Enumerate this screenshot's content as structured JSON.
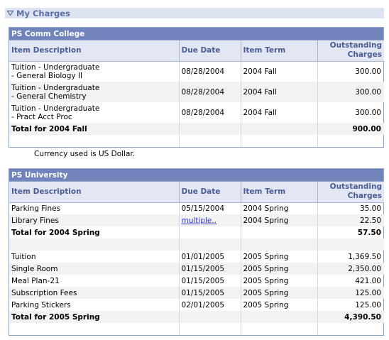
{
  "section": {
    "title": "My Charges"
  },
  "groups": [
    {
      "title": "PS Comm College",
      "headers": {
        "desc": "Item Description",
        "due": "Due Date",
        "term": "Item Term",
        "amount_line1": "Outstanding",
        "amount_line2": "Charges"
      },
      "rows": [
        {
          "desc1": "Tuition - Undergraduate",
          "desc2": "-  General Biology II",
          "due": "08/28/2004",
          "term": "2004 Fall",
          "amount": "300.00"
        },
        {
          "desc1": "Tuition - Undergraduate",
          "desc2": "-  General Chemistry",
          "due": "08/28/2004",
          "term": "2004 Fall",
          "amount": "300.00"
        },
        {
          "desc1": "Tuition - Undergraduate",
          "desc2": "-  Pract Acct Proc",
          "due": "08/28/2004",
          "term": "2004 Fall",
          "amount": "300.00"
        }
      ],
      "total": {
        "label": "Total for 2004 Fall",
        "amount": "900.00"
      }
    },
    {
      "title": "PS University",
      "headers": {
        "desc": "Item Description",
        "due": "Due Date",
        "term": "Item Term",
        "amount_line1": "Outstanding",
        "amount_line2": "Charges"
      },
      "block1": [
        {
          "desc": "Parking Fines",
          "due": "05/15/2004",
          "term": "2004 Spring",
          "amount": "35.00"
        },
        {
          "desc": "Library Fines",
          "due": "multiple..",
          "term": "2004 Spring",
          "amount": "22.50"
        }
      ],
      "total1": {
        "label": "Total for 2004 Spring",
        "amount": "57.50"
      },
      "block2": [
        {
          "desc": "Tuition",
          "due": "01/01/2005",
          "term": "2005 Spring",
          "amount": "1,369.50"
        },
        {
          "desc": "Single Room",
          "due": "01/15/2005",
          "term": "2005 Spring",
          "amount": "2,350.00"
        },
        {
          "desc": "Meal Plan-21",
          "due": "01/15/2005",
          "term": "2005 Spring",
          "amount": "421.00"
        },
        {
          "desc": "Subscription Fees",
          "due": "01/15/2005",
          "term": "2005 Spring",
          "amount": "125.00"
        },
        {
          "desc": "Parking Stickers",
          "due": "02/01/2005",
          "term": "2005 Spring",
          "amount": "125.00"
        }
      ],
      "total2": {
        "label": "Total for 2005 Spring",
        "amount": "4,390.50"
      }
    }
  ],
  "currency_note": "Currency used is US Dollar.",
  "colors": {
    "grid_title_bg": "#7185bc",
    "header_bg": "#e2e7f3",
    "section_title": "#5a6fa8",
    "link": "#3333cc"
  },
  "icons": {
    "collapse": "collapse-triangle-icon"
  }
}
